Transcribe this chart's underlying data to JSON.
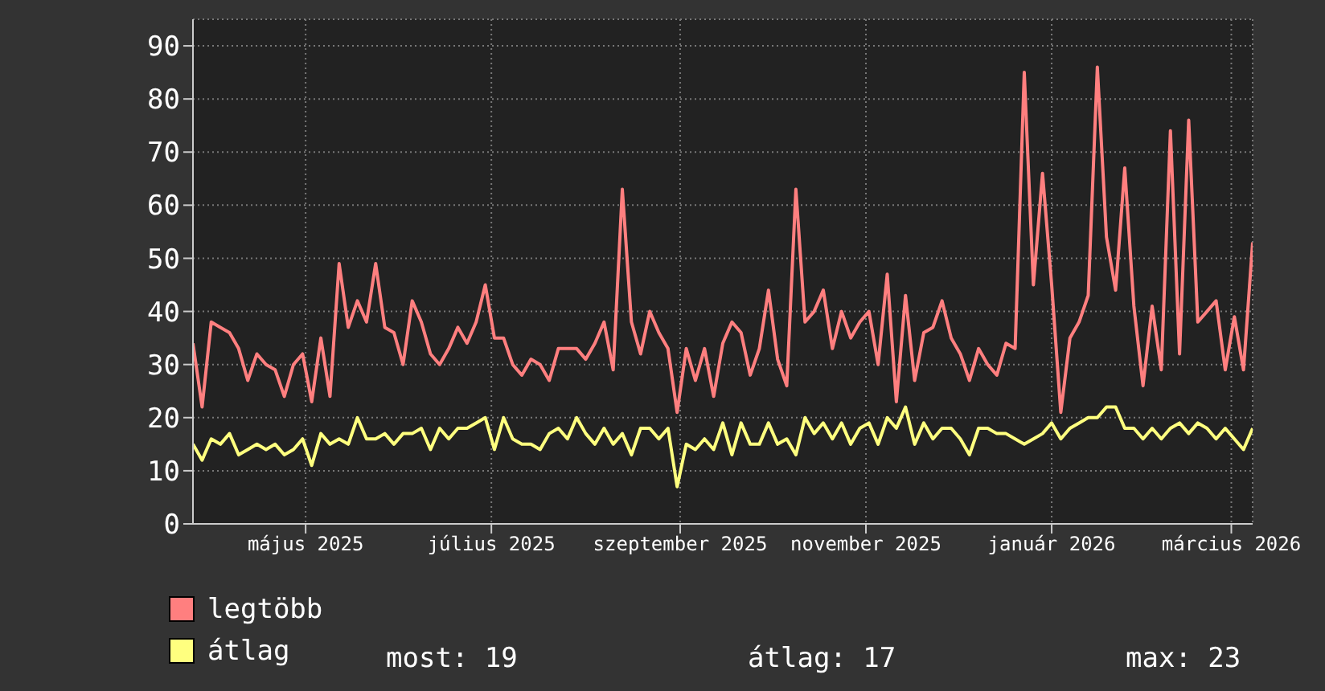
{
  "chart_data": {
    "type": "line",
    "x": [
      "2025-03-25",
      "2025-03-28",
      "2025-03-31",
      "2025-04-03",
      "2025-04-06",
      "2025-04-09",
      "2025-04-12",
      "2025-04-15",
      "2025-04-18",
      "2025-04-21",
      "2025-04-24",
      "2025-04-27",
      "2025-04-30",
      "2025-05-03",
      "2025-05-06",
      "2025-05-09",
      "2025-05-12",
      "2025-05-15",
      "2025-05-18",
      "2025-05-21",
      "2025-05-24",
      "2025-05-27",
      "2025-05-30",
      "2025-06-02",
      "2025-06-05",
      "2025-06-08",
      "2025-06-11",
      "2025-06-14",
      "2025-06-17",
      "2025-06-20",
      "2025-06-23",
      "2025-06-26",
      "2025-06-29",
      "2025-07-02",
      "2025-07-05",
      "2025-07-08",
      "2025-07-11",
      "2025-07-14",
      "2025-07-17",
      "2025-07-20",
      "2025-07-23",
      "2025-07-26",
      "2025-07-29",
      "2025-08-01",
      "2025-08-04",
      "2025-08-07",
      "2025-08-10",
      "2025-08-13",
      "2025-08-16",
      "2025-08-19",
      "2025-08-22",
      "2025-08-25",
      "2025-08-28",
      "2025-08-31",
      "2025-09-03",
      "2025-09-06",
      "2025-09-09",
      "2025-09-12",
      "2025-09-15",
      "2025-09-18",
      "2025-09-21",
      "2025-09-24",
      "2025-09-27",
      "2025-09-30",
      "2025-10-03",
      "2025-10-06",
      "2025-10-09",
      "2025-10-12",
      "2025-10-15",
      "2025-10-18",
      "2025-10-21",
      "2025-10-24",
      "2025-10-27",
      "2025-10-30",
      "2025-11-02",
      "2025-11-05",
      "2025-11-08",
      "2025-11-11",
      "2025-11-14",
      "2025-11-17",
      "2025-11-20",
      "2025-11-23",
      "2025-11-26",
      "2025-11-29",
      "2025-12-02",
      "2025-12-05",
      "2025-12-08",
      "2025-12-11",
      "2025-12-14",
      "2025-12-17",
      "2025-12-20",
      "2025-12-23",
      "2025-12-26",
      "2025-12-29",
      "2026-01-01",
      "2026-01-04",
      "2026-01-07",
      "2026-01-10",
      "2026-01-13",
      "2026-01-16",
      "2026-01-19",
      "2026-01-22",
      "2026-01-25",
      "2026-01-28",
      "2026-01-31",
      "2026-02-03",
      "2026-02-06",
      "2026-02-09",
      "2026-02-12",
      "2026-02-15",
      "2026-02-18",
      "2026-02-21",
      "2026-02-24",
      "2026-02-27",
      "2026-03-02",
      "2026-03-05",
      "2026-03-08"
    ],
    "series": [
      {
        "name": "legtöbb",
        "color": "#ff7f7f",
        "values": [
          34,
          22,
          38,
          37,
          36,
          33,
          27,
          32,
          30,
          29,
          24,
          30,
          32,
          23,
          35,
          24,
          49,
          37,
          42,
          38,
          49,
          37,
          36,
          30,
          42,
          38,
          32,
          30,
          33,
          37,
          34,
          38,
          45,
          35,
          35,
          30,
          28,
          31,
          30,
          27,
          33,
          33,
          33,
          31,
          34,
          38,
          29,
          63,
          38,
          32,
          40,
          36,
          33,
          21,
          33,
          27,
          33,
          24,
          34,
          38,
          36,
          28,
          33,
          44,
          31,
          26,
          63,
          38,
          40,
          44,
          33,
          40,
          35,
          38,
          40,
          30,
          47,
          23,
          43,
          27,
          36,
          37,
          42,
          35,
          32,
          27,
          33,
          30,
          28,
          34,
          33,
          85,
          45,
          66,
          45,
          21,
          35,
          38,
          43,
          86,
          54,
          44,
          67,
          41,
          26,
          41,
          29,
          74,
          32,
          76,
          38,
          40,
          42,
          29,
          39,
          29,
          53
        ]
      },
      {
        "name": "átlag",
        "color": "#ffff7f",
        "values": [
          15,
          12,
          16,
          15,
          17,
          13,
          14,
          15,
          14,
          15,
          13,
          14,
          16,
          11,
          17,
          15,
          16,
          15,
          20,
          16,
          16,
          17,
          15,
          17,
          17,
          18,
          14,
          18,
          16,
          18,
          18,
          19,
          20,
          14,
          20,
          16,
          15,
          15,
          14,
          17,
          18,
          16,
          20,
          17,
          15,
          18,
          15,
          17,
          13,
          18,
          18,
          16,
          18,
          7,
          15,
          14,
          16,
          14,
          19,
          13,
          19,
          15,
          15,
          19,
          15,
          16,
          13,
          20,
          17,
          19,
          16,
          19,
          15,
          18,
          19,
          15,
          20,
          18,
          22,
          15,
          19,
          16,
          18,
          18,
          16,
          13,
          18,
          18,
          17,
          17,
          16,
          15,
          16,
          17,
          19,
          16,
          18,
          19,
          20,
          20,
          22,
          22,
          18,
          18,
          16,
          18,
          16,
          18,
          19,
          17,
          19,
          18,
          16,
          18,
          16,
          14,
          18
        ]
      }
    ],
    "xlim": [
      "2025-03-25",
      "2026-03-08"
    ],
    "xticks": [
      {
        "value": "2025-05-01",
        "label": "május 2025"
      },
      {
        "value": "2025-07-01",
        "label": "július 2025"
      },
      {
        "value": "2025-09-01",
        "label": "szeptember 2025"
      },
      {
        "value": "2025-11-01",
        "label": "november 2025"
      },
      {
        "value": "2026-01-01",
        "label": "január 2026"
      },
      {
        "value": "2026-03-01",
        "label": "március 2026"
      }
    ],
    "ylim": [
      0,
      95
    ],
    "yticks": [
      0,
      10,
      20,
      30,
      40,
      50,
      60,
      70,
      80,
      90
    ],
    "grid": true,
    "legend": "bottom left",
    "annotations": [
      "most: 19",
      "átlag: 17",
      "max: 23"
    ]
  }
}
